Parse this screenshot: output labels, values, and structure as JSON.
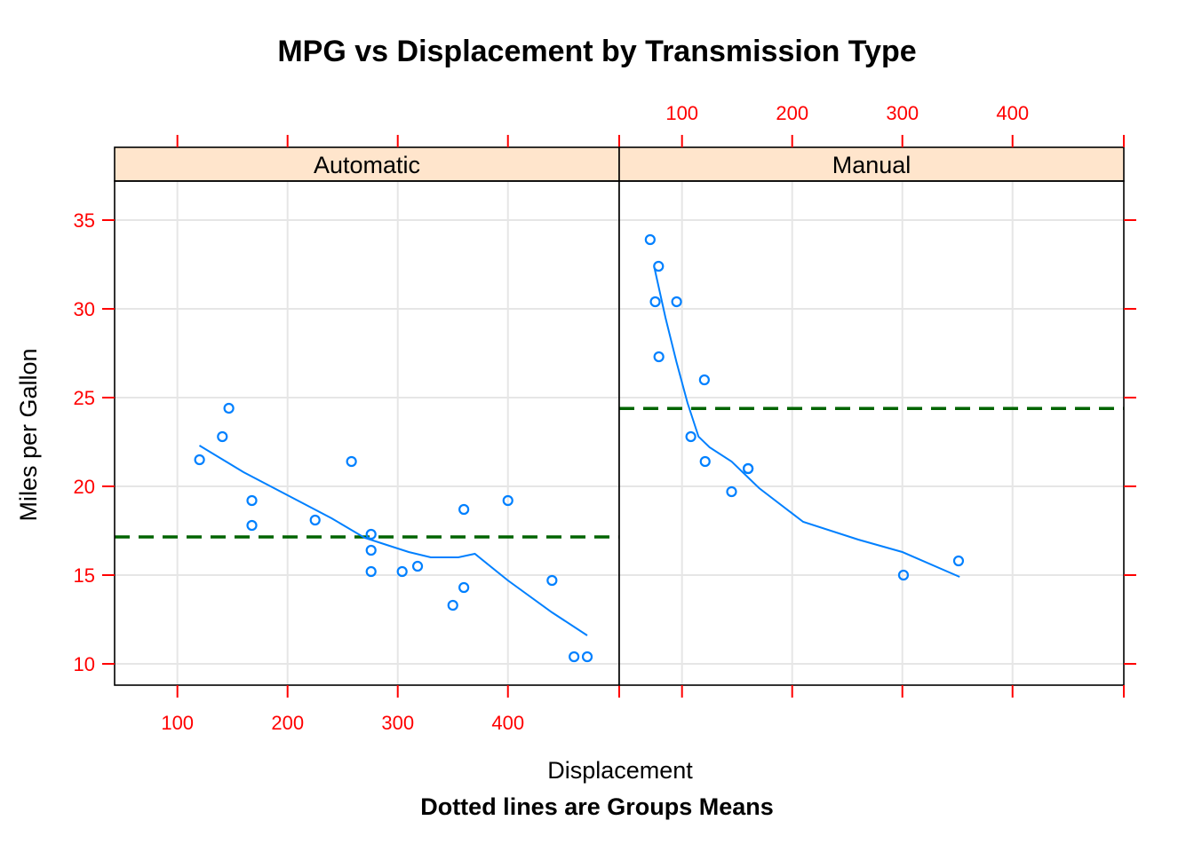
{
  "chart_data": {
    "type": "scatter",
    "title": "MPG vs Displacement by Transmission Type",
    "xlabel": "Displacement",
    "sub": "Dotted lines are Groups Means",
    "ylabel": "Miles per Gallon",
    "xlim": [
      43,
      501
    ],
    "ylim": [
      8.8,
      37.2
    ],
    "xticks": [
      100,
      200,
      300,
      400
    ],
    "xtick_labels": [
      "100",
      "200",
      "300",
      "400"
    ],
    "yticks": [
      10,
      15,
      20,
      25,
      30,
      35
    ],
    "ytick_labels": [
      "10",
      "15",
      "20",
      "25",
      "30",
      "35"
    ],
    "colors": {
      "points": "#0080ff",
      "smooth": "#0080ff",
      "mean_line": "#006400",
      "ticks": "#ff0000",
      "strip": "#ffe5cc",
      "grid": "#e6e6e6"
    },
    "panels": [
      {
        "name": "Automatic",
        "x": [
          120.1,
          140.8,
          146.7,
          167.6,
          167.6,
          225,
          258,
          275.8,
          275.8,
          275.8,
          304,
          318,
          350,
          360,
          360,
          400,
          440,
          460,
          472
        ],
        "y": [
          21.5,
          22.8,
          24.4,
          19.2,
          17.8,
          18.1,
          21.4,
          17.3,
          16.4,
          15.2,
          15.2,
          15.5,
          13.3,
          14.3,
          18.7,
          19.2,
          14.7,
          10.4,
          10.4
        ],
        "mean": 17.15,
        "smooth": {
          "x": [
            120,
            160,
            200,
            240,
            270,
            290,
            310,
            330,
            355,
            370,
            400,
            440,
            472
          ],
          "y": [
            22.3,
            20.8,
            19.5,
            18.2,
            17.1,
            16.7,
            16.3,
            16.0,
            16.0,
            16.2,
            14.7,
            12.9,
            11.6
          ]
        }
      },
      {
        "name": "Manual",
        "x": [
          71.1,
          75.7,
          78.7,
          79,
          95.1,
          108,
          120.3,
          121,
          145,
          160,
          160,
          301,
          351
        ],
        "y": [
          33.9,
          30.4,
          32.4,
          27.3,
          30.4,
          22.8,
          26.0,
          21.4,
          19.7,
          21.0,
          21.0,
          15.0,
          15.8
        ],
        "mean": 24.39,
        "smooth": {
          "x": [
            75,
            85,
            95,
            105,
            115,
            125,
            145,
            170,
            210,
            260,
            300,
            352
          ],
          "y": [
            32.3,
            29.5,
            27.0,
            24.7,
            22.8,
            22.2,
            21.4,
            19.9,
            18.0,
            17.0,
            16.3,
            14.9
          ]
        }
      }
    ]
  }
}
